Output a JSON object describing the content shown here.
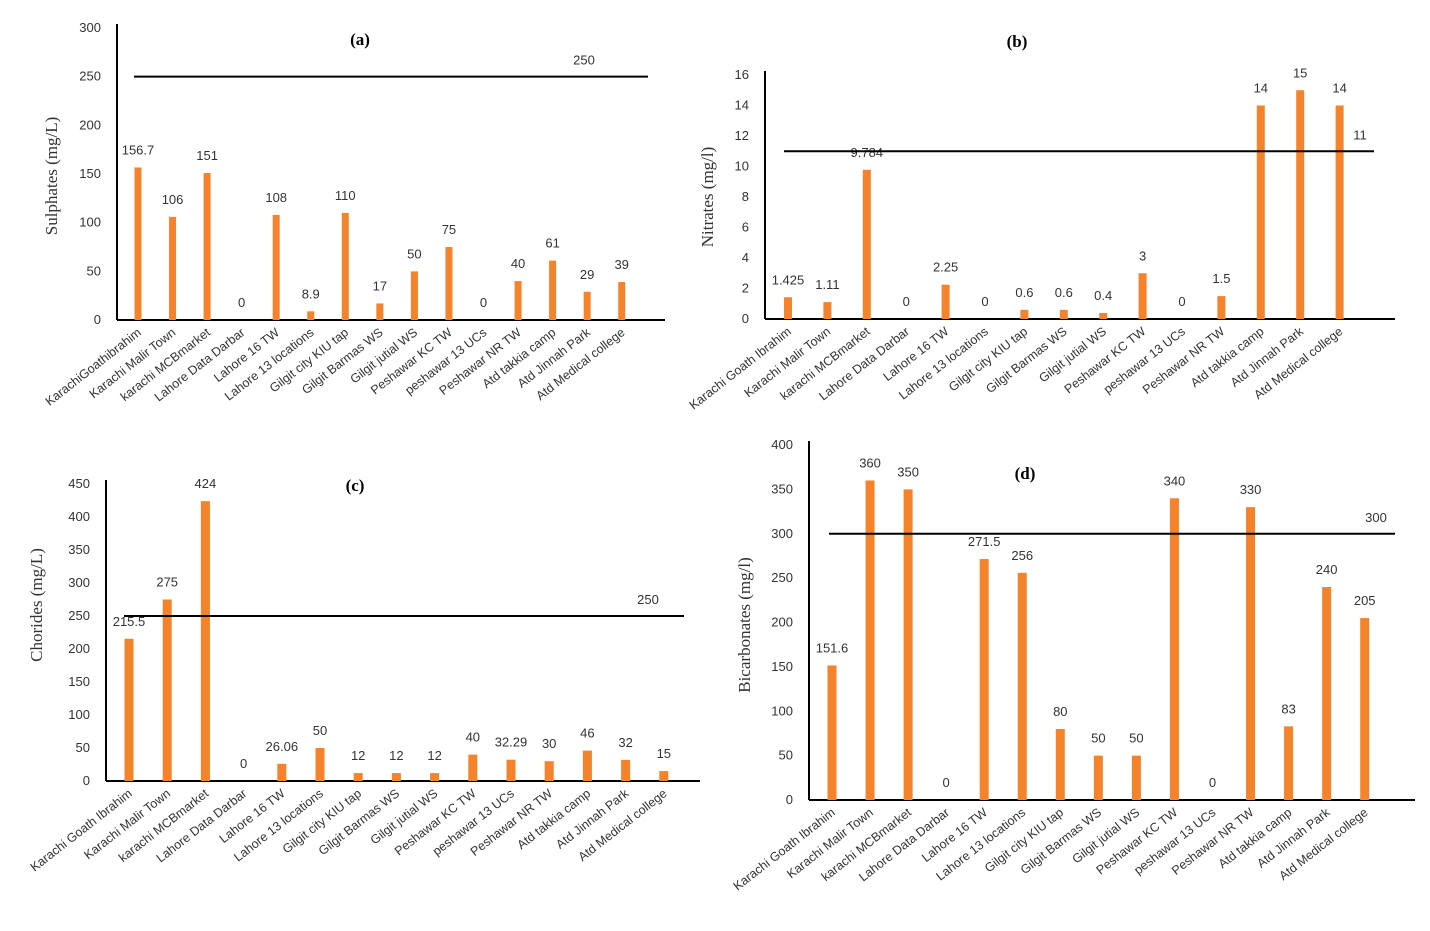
{
  "chart_data": [
    {
      "id": "a",
      "type": "bar",
      "title": "(a)",
      "ylabel": "Sulphates  (mg/L)",
      "xlabel": "",
      "ylim": [
        0,
        300
      ],
      "yticks": [
        0,
        50,
        100,
        150,
        200,
        250,
        300
      ],
      "categories": [
        "KarachiGoathibrahim",
        "Karachi Malir Town",
        "karachi MCBmarket",
        "Lahore Data Darbar",
        "Lahore 16 TW",
        "Lahore 13 locations",
        "Gilgit city KIU tap",
        "Gilgit Barmas WS",
        "Gilgit jutial WS",
        "Peshawar KC TW",
        "peshawar 13 UCs",
        "Peshawar NR TW",
        "Atd takkia camp",
        "Atd Jinnah Park",
        "Atd Medical college"
      ],
      "values": [
        156.7,
        106,
        151,
        0,
        108,
        8.9,
        110,
        17,
        50,
        75,
        0,
        40,
        61,
        29,
        39
      ],
      "value_labels": [
        "156.7",
        "106",
        "151",
        "0",
        "108",
        "8.9",
        "110",
        "17",
        "50",
        "75",
        "0",
        "40",
        "61",
        "29",
        "39"
      ],
      "limit": 250,
      "limit_label": "250",
      "bar_color": "#f4832b",
      "grid": false
    },
    {
      "id": "b",
      "type": "bar",
      "title": "(b)",
      "ylabel": "Nitrates  (mg/l)",
      "xlabel": "",
      "ylim": [
        0,
        16
      ],
      "yticks": [
        0,
        2,
        4,
        6,
        8,
        10,
        12,
        14,
        16
      ],
      "categories": [
        "Karachi Goath Ibrahim",
        "Karachi Malir Town",
        "karachi MCBmarket",
        "Lahore Data Darbar",
        "Lahore 16 TW",
        "Lahore 13 locations",
        "Gilgit city KIU tap",
        "Gilgit Barmas WS",
        "Gilgit jutial WS",
        "Peshawar KC TW",
        "peshawar 13 UCs",
        "Peshawar NR TW",
        "Atd takkia camp",
        "Atd Jinnah Park",
        "Atd Medical college"
      ],
      "values": [
        1.425,
        1.11,
        9.784,
        0,
        2.25,
        0,
        0.6,
        0.6,
        0.4,
        3,
        0,
        1.5,
        14,
        15,
        14
      ],
      "value_labels": [
        "1.425",
        "1.11",
        "9.784",
        "0",
        "2.25",
        "0",
        "0.6",
        "0.6",
        "0.4",
        "3",
        "0",
        "1.5",
        "14",
        "15",
        "14"
      ],
      "limit": 11,
      "limit_label": "11",
      "bar_color": "#f4832b",
      "grid": false
    },
    {
      "id": "c",
      "type": "bar",
      "title": "(c)",
      "ylabel": "Chorides  (mg/L)",
      "xlabel": "",
      "ylim": [
        0,
        450
      ],
      "yticks": [
        0,
        50,
        100,
        150,
        200,
        250,
        300,
        350,
        400,
        450
      ],
      "categories": [
        "Karachi Goath Ibrahim",
        "Karachi Malir Town",
        "karachi MCBmarket",
        "Lahore Data Darbar",
        "Lahore 16 TW",
        "Lahore 13 locations",
        "Gilgit city KIU tap",
        "Gilgit Barmas WS",
        "Gilgit jutial WS",
        "Peshawar KC TW",
        "peshawar 13 UCs",
        "Peshawar NR TW",
        "Atd takkia camp",
        "Atd Jinnah Park",
        "Atd Medical college"
      ],
      "values": [
        215.5,
        275,
        424,
        0,
        26.06,
        50,
        12,
        12,
        12,
        40,
        32.29,
        30,
        46,
        32,
        15
      ],
      "value_labels": [
        "215.5",
        "275",
        "424",
        "0",
        "26.06",
        "50",
        "12",
        "12",
        "12",
        "40",
        "32.29",
        "30",
        "46",
        "32",
        "15"
      ],
      "limit": 250,
      "limit_label": "250",
      "bar_color": "#f4832b",
      "grid": false
    },
    {
      "id": "d",
      "type": "bar",
      "title": "(d)",
      "ylabel": "Bicarbonates   (mg/l)",
      "xlabel": "",
      "ylim": [
        0,
        400
      ],
      "yticks": [
        0,
        50,
        100,
        150,
        200,
        250,
        300,
        350,
        400
      ],
      "categories": [
        "Karachi Goath Ibrahim",
        "Karachi Malir Town",
        "karachi MCBmarket",
        "Lahore Data Darbar",
        "Lahore 16 TW",
        "Lahore 13 locations",
        "Gilgit city KIU tap",
        "Gilgit Barmas WS",
        "Gilgit jutial WS",
        "Peshawar KC TW",
        "peshawar 13 UCs",
        "Peshawar NR TW",
        "Atd takkia camp",
        "Atd Jinnah Park",
        "Atd Medical college"
      ],
      "values": [
        151.6,
        360,
        350,
        0,
        271.5,
        256,
        80,
        50,
        50,
        340,
        0,
        330,
        83,
        240,
        205
      ],
      "value_labels": [
        "151.6",
        "360",
        "350",
        "0",
        "271.5",
        "256",
        "80",
        "50",
        "50",
        "340",
        "0",
        "330",
        "83",
        "240",
        "205"
      ],
      "limit": 300,
      "limit_label": "300",
      "bar_color": "#f4832b",
      "grid": false
    }
  ]
}
